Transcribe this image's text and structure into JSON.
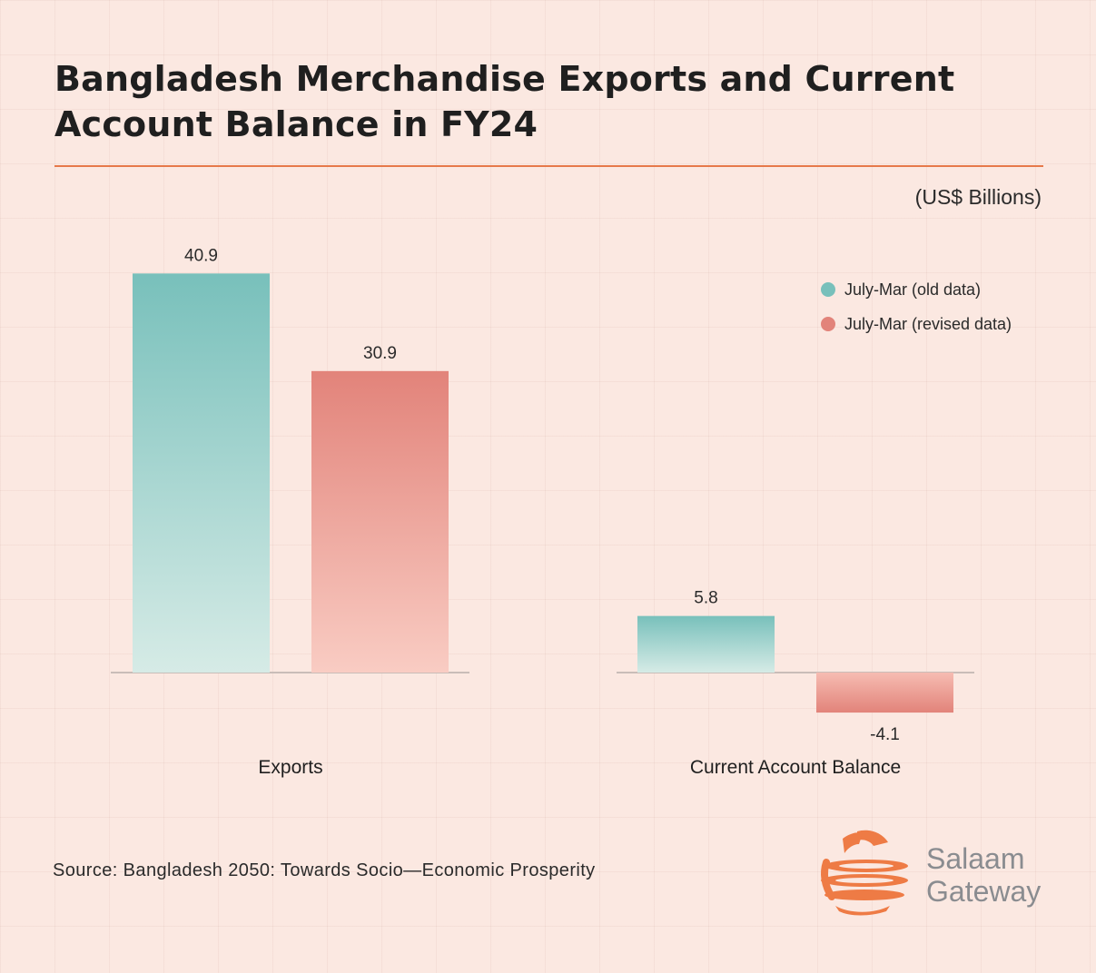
{
  "title": "Bangladesh Merchandise Exports and Current Account Balance in FY24",
  "unit_label": "(US$ Billions)",
  "source": "Source: Bangladesh 2050: Towards Socio—Economic Prosperity",
  "brand": {
    "line1": "Salaam",
    "line2": "Gateway",
    "logo_icon": "salaam-gateway-globe-icon",
    "logo_color": "#ee7b45",
    "text_color": "#8a8c90"
  },
  "colors": {
    "background": "#fbe8e1",
    "accent_rule": "#e6794a",
    "old_data": "#78c0bb",
    "revised_data": "#e2837a"
  },
  "chart_data": {
    "type": "bar",
    "title": "Bangladesh Merchandise Exports and Current Account Balance in FY24",
    "unit": "(US$ Billions)",
    "categories": [
      "Exports",
      "Current Account Balance"
    ],
    "series": [
      {
        "name": "July-Mar (old data)",
        "color": "#78c0bb",
        "values": [
          40.9,
          5.8
        ]
      },
      {
        "name": "July-Mar (revised data)",
        "color": "#e2837a",
        "values": [
          30.9,
          -4.1
        ]
      }
    ],
    "value_labels": [
      [
        "40.9",
        "5.8"
      ],
      [
        "30.9",
        "-4.1"
      ]
    ],
    "grid": false,
    "legend_position": "top-right"
  }
}
